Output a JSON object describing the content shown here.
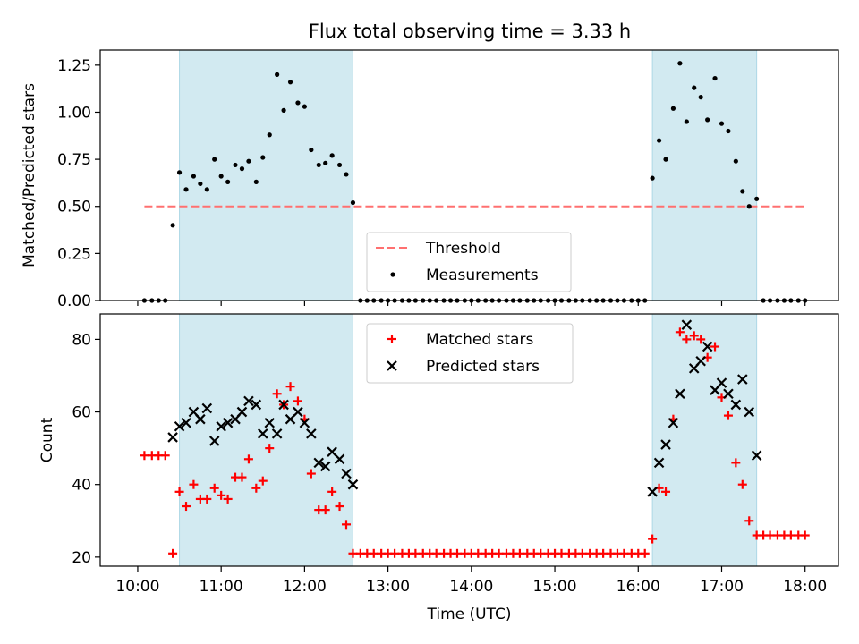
{
  "title": "Flux total observing time = 3.33 h",
  "xlabel": "Time (UTC)",
  "x_ticks": [
    "10:00",
    "11:00",
    "12:00",
    "13:00",
    "14:00",
    "15:00",
    "16:00",
    "17:00",
    "18:00"
  ],
  "x_tick_hours": [
    10,
    11,
    12,
    13,
    14,
    15,
    16,
    17,
    18
  ],
  "xlim_hours": [
    9.55,
    18.4
  ],
  "colors": {
    "threshold": "#ff7070",
    "matched": "#ff0000",
    "predicted": "#000000",
    "band": "#add8e6"
  },
  "chart_data": [
    {
      "type": "scatter",
      "ylabel": "Matched/Predicted stars",
      "ylim": [
        0,
        1.33
      ],
      "y_ticks": [
        0.0,
        0.25,
        0.5,
        0.75,
        1.0,
        1.25
      ],
      "y_tick_labels": [
        "0.00",
        "0.25",
        "0.50",
        "0.75",
        "1.00",
        "1.25"
      ],
      "shaded_intervals_hours": [
        [
          10.5,
          12.58
        ],
        [
          16.17,
          17.42
        ]
      ],
      "threshold": {
        "name": "Threshold",
        "value": 0.5,
        "x_hours": [
          10.08,
          18.0
        ]
      },
      "legend": {
        "threshold_label": "Threshold",
        "series_label": "Measurements",
        "position": "lower-center"
      },
      "series": [
        {
          "name": "Measurements",
          "x_hours": [
            10.08,
            10.17,
            10.25,
            10.33,
            10.42,
            10.5,
            10.58,
            10.67,
            10.75,
            10.83,
            10.92,
            11.0,
            11.08,
            11.17,
            11.25,
            11.33,
            11.42,
            11.5,
            11.58,
            11.67,
            11.75,
            11.83,
            11.92,
            12.0,
            12.08,
            12.17,
            12.25,
            12.33,
            12.42,
            12.5,
            12.58,
            12.67,
            12.75,
            12.83,
            12.92,
            13.0,
            13.08,
            13.17,
            13.25,
            13.33,
            13.42,
            13.5,
            13.58,
            13.67,
            13.75,
            13.83,
            13.92,
            14.0,
            14.08,
            14.17,
            14.25,
            14.33,
            14.42,
            14.5,
            14.58,
            14.67,
            14.75,
            14.83,
            14.92,
            15.0,
            15.08,
            15.17,
            15.25,
            15.33,
            15.42,
            15.5,
            15.58,
            15.67,
            15.75,
            15.83,
            15.92,
            16.0,
            16.08,
            16.17,
            16.25,
            16.33,
            16.42,
            16.5,
            16.58,
            16.67,
            16.75,
            16.83,
            16.92,
            17.0,
            17.08,
            17.17,
            17.25,
            17.33,
            17.42,
            17.5,
            17.58,
            17.67,
            17.75,
            17.83,
            17.92,
            18.0
          ],
          "values": [
            0,
            0,
            0,
            0,
            0.4,
            0.68,
            0.59,
            0.66,
            0.62,
            0.59,
            0.75,
            0.66,
            0.63,
            0.72,
            0.7,
            0.74,
            0.63,
            0.76,
            0.88,
            1.2,
            1.01,
            1.16,
            1.05,
            1.03,
            0.8,
            0.72,
            0.73,
            0.77,
            0.72,
            0.67,
            0.52,
            0,
            0,
            0,
            0,
            0,
            0,
            0,
            0,
            0,
            0,
            0,
            0,
            0,
            0,
            0,
            0,
            0,
            0,
            0,
            0,
            0,
            0,
            0,
            0,
            0,
            0,
            0,
            0,
            0,
            0,
            0,
            0,
            0,
            0,
            0,
            0,
            0,
            0,
            0,
            0,
            0,
            0,
            0.65,
            0.85,
            0.75,
            1.02,
            1.26,
            0.95,
            1.13,
            1.08,
            0.96,
            1.18,
            0.94,
            0.9,
            0.74,
            0.58,
            0.5,
            0.54,
            0,
            0,
            0,
            0,
            0,
            0,
            0
          ]
        }
      ]
    },
    {
      "type": "scatter",
      "ylabel": "Count",
      "ylim": [
        17.5,
        87
      ],
      "y_ticks": [
        20,
        40,
        60,
        80
      ],
      "y_tick_labels": [
        "20",
        "40",
        "60",
        "80"
      ],
      "shaded_intervals_hours": [
        [
          10.5,
          12.58
        ],
        [
          16.17,
          17.42
        ]
      ],
      "legend": {
        "position": "upper-center"
      },
      "series": [
        {
          "name": "Matched stars",
          "marker": "plus",
          "x_hours": [
            10.08,
            10.17,
            10.25,
            10.33,
            10.42,
            10.5,
            10.58,
            10.67,
            10.75,
            10.83,
            10.92,
            11.0,
            11.08,
            11.17,
            11.25,
            11.33,
            11.42,
            11.5,
            11.58,
            11.67,
            11.75,
            11.83,
            11.92,
            12.0,
            12.08,
            12.17,
            12.25,
            12.33,
            12.42,
            12.5,
            12.58,
            12.67,
            12.75,
            12.83,
            12.92,
            13.0,
            13.08,
            13.17,
            13.25,
            13.33,
            13.42,
            13.5,
            13.58,
            13.67,
            13.75,
            13.83,
            13.92,
            14.0,
            14.08,
            14.17,
            14.25,
            14.33,
            14.42,
            14.5,
            14.58,
            14.67,
            14.75,
            14.83,
            14.92,
            15.0,
            15.08,
            15.17,
            15.25,
            15.33,
            15.42,
            15.5,
            15.58,
            15.67,
            15.75,
            15.83,
            15.92,
            16.0,
            16.08,
            16.17,
            16.25,
            16.33,
            16.42,
            16.5,
            16.58,
            16.67,
            16.75,
            16.83,
            16.92,
            17.0,
            17.08,
            17.17,
            17.25,
            17.33,
            17.42,
            17.5,
            17.58,
            17.67,
            17.75,
            17.83,
            17.92,
            18.0
          ],
          "values": [
            48,
            48,
            48,
            48,
            21,
            38,
            34,
            40,
            36,
            36,
            39,
            37,
            36,
            42,
            42,
            47,
            39,
            41,
            50,
            65,
            62,
            67,
            63,
            58,
            43,
            33,
            33,
            38,
            34,
            29,
            21,
            21,
            21,
            21,
            21,
            21,
            21,
            21,
            21,
            21,
            21,
            21,
            21,
            21,
            21,
            21,
            21,
            21,
            21,
            21,
            21,
            21,
            21,
            21,
            21,
            21,
            21,
            21,
            21,
            21,
            21,
            21,
            21,
            21,
            21,
            21,
            21,
            21,
            21,
            21,
            21,
            21,
            21,
            25,
            39,
            38,
            58,
            82,
            80,
            81,
            80,
            75,
            78,
            64,
            59,
            46,
            40,
            30,
            26,
            26,
            26,
            26,
            26,
            26,
            26,
            26
          ]
        },
        {
          "name": "Predicted stars",
          "marker": "x",
          "x_hours": [
            10.42,
            10.5,
            10.58,
            10.67,
            10.75,
            10.83,
            10.92,
            11.0,
            11.08,
            11.17,
            11.25,
            11.33,
            11.42,
            11.5,
            11.58,
            11.67,
            11.75,
            11.83,
            11.92,
            12.0,
            12.08,
            12.17,
            12.25,
            12.33,
            12.42,
            12.5,
            12.58,
            16.17,
            16.25,
            16.33,
            16.42,
            16.5,
            16.58,
            16.67,
            16.75,
            16.83,
            16.92,
            17.0,
            17.08,
            17.17,
            17.25,
            17.33,
            17.42
          ],
          "values": [
            53,
            56,
            57,
            60,
            58,
            61,
            52,
            56,
            57,
            58,
            60,
            63,
            62,
            54,
            57,
            54,
            62,
            58,
            60,
            57,
            54,
            46,
            45,
            49,
            47,
            43,
            40,
            38,
            46,
            51,
            57,
            65,
            84,
            72,
            74,
            78,
            66,
            68,
            65,
            62,
            69,
            60,
            48
          ]
        }
      ]
    }
  ]
}
